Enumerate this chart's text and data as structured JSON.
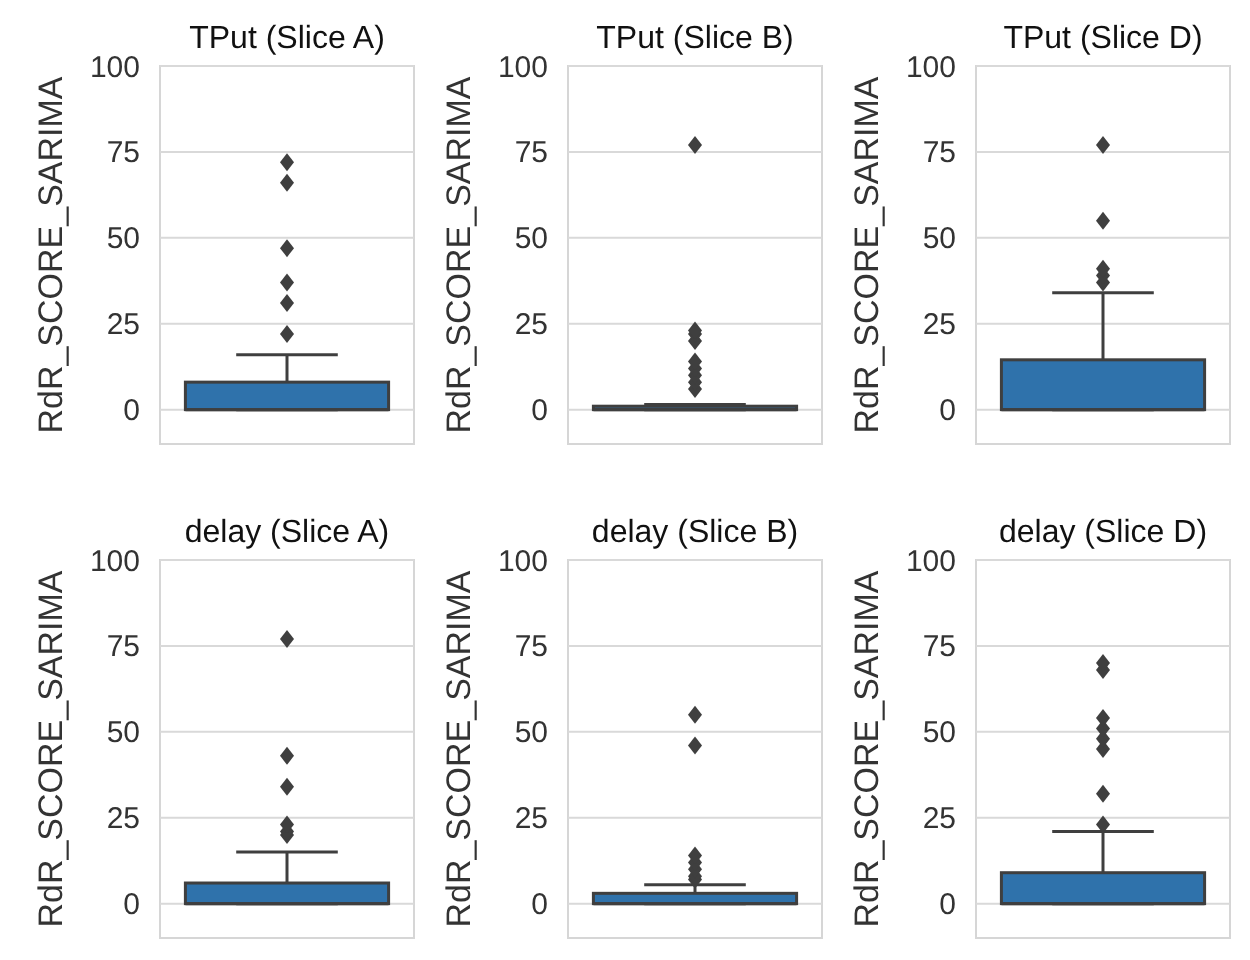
{
  "chart_data": [
    {
      "type": "box",
      "title": "TPut (Slice A)",
      "ylabel": "RdR_SCORE_SARIMA",
      "categories": [
        null
      ],
      "ylim": [
        -10,
        100
      ],
      "yticks": [
        0,
        25,
        50,
        75,
        100
      ],
      "grid": "y",
      "tick_labels": "y",
      "series": [
        {
          "color": "#2f72ab",
          "boxes": [
            {
              "low": 0,
              "q1": 0,
              "median": 0,
              "q3": 8,
              "high": 16,
              "outliers": [
                22,
                31,
                37,
                47,
                66,
                72
              ]
            }
          ]
        }
      ]
    },
    {
      "type": "box",
      "title": "TPut (Slice B)",
      "ylabel": "RdR_SCORE_SARIMA",
      "categories": [
        null
      ],
      "ylim": [
        -10,
        100
      ],
      "yticks": [
        0,
        25,
        50,
        75,
        100
      ],
      "grid": "y",
      "tick_labels": "y",
      "series": [
        {
          "color": "#2f72ab",
          "boxes": [
            {
              "low": 0,
              "q1": 0,
              "median": 0,
              "q3": 1,
              "high": 1.5,
              "outliers": [
                6,
                8,
                10,
                12,
                14,
                20,
                22,
                23,
                77
              ]
            }
          ]
        }
      ]
    },
    {
      "type": "box",
      "title": "TPut (Slice D)",
      "ylabel": "RdR_SCORE_SARIMA",
      "categories": [
        null
      ],
      "ylim": [
        -10,
        100
      ],
      "yticks": [
        0,
        25,
        50,
        75,
        100
      ],
      "grid": "y",
      "tick_labels": "y",
      "series": [
        {
          "color": "#2f72ab",
          "boxes": [
            {
              "low": 0,
              "q1": 0,
              "median": 0,
              "q3": 14.5,
              "high": 34,
              "outliers": [
                37,
                39,
                41,
                55,
                77
              ]
            }
          ]
        }
      ]
    },
    {
      "type": "box",
      "title": "delay (Slice A)",
      "ylabel": "RdR_SCORE_SARIMA",
      "categories": [
        null
      ],
      "ylim": [
        -10,
        100
      ],
      "yticks": [
        0,
        25,
        50,
        75,
        100
      ],
      "grid": "y",
      "tick_labels": "y",
      "series": [
        {
          "color": "#2f72ab",
          "boxes": [
            {
              "low": 0,
              "q1": 0,
              "median": 0,
              "q3": 6,
              "high": 15,
              "outliers": [
                20,
                21,
                23,
                34,
                43,
                77
              ]
            }
          ]
        }
      ]
    },
    {
      "type": "box",
      "title": "delay (Slice B)",
      "ylabel": "RdR_SCORE_SARIMA",
      "categories": [
        null
      ],
      "ylim": [
        -10,
        100
      ],
      "yticks": [
        0,
        25,
        50,
        75,
        100
      ],
      "grid": "y",
      "tick_labels": "y",
      "series": [
        {
          "color": "#2f72ab",
          "boxes": [
            {
              "low": 0,
              "q1": 0,
              "median": 0,
              "q3": 3,
              "high": 5.5,
              "outliers": [
                7,
                8,
                10,
                12,
                14,
                46,
                55
              ]
            }
          ]
        }
      ]
    },
    {
      "type": "box",
      "title": "delay (Slice D)",
      "ylabel": "RdR_SCORE_SARIMA",
      "categories": [
        null
      ],
      "ylim": [
        -10,
        100
      ],
      "yticks": [
        0,
        25,
        50,
        75,
        100
      ],
      "grid": "y",
      "tick_labels": "y",
      "series": [
        {
          "color": "#2f72ab",
          "boxes": [
            {
              "low": 0,
              "q1": 0,
              "median": 0,
              "q3": 9,
              "high": 21,
              "outliers": [
                23,
                32,
                45,
                48,
                51,
                54,
                68,
                70
              ]
            }
          ]
        }
      ]
    }
  ]
}
